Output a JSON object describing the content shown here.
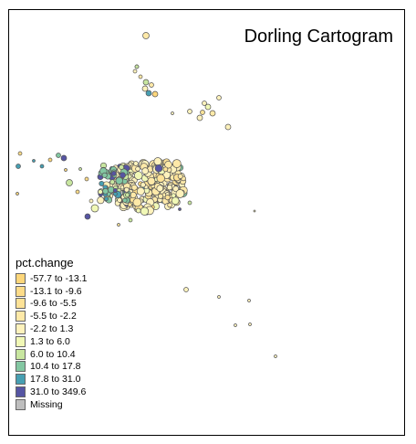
{
  "title": "Dorling Cartogram",
  "legend": {
    "title": "pct.change",
    "items": [
      {
        "label": "-57.7 to -13.1",
        "color": "#FDD67A"
      },
      {
        "label": "-13.1 to -9.6",
        "color": "#FDDC89"
      },
      {
        "label": "-9.6 to -5.5",
        "color": "#FDE297"
      },
      {
        "label": "-5.5 to -2.2",
        "color": "#FEE9A8"
      },
      {
        "label": "-2.2 to 1.3",
        "color": "#FEF2BC"
      },
      {
        "label": "1.3 to 6.0",
        "color": "#F1F8B6"
      },
      {
        "label": "6.0 to 10.4",
        "color": "#C8E6A0"
      },
      {
        "label": "10.4 to 17.8",
        "color": "#83C7A2"
      },
      {
        "label": "17.8 to 31.0",
        "color": "#479FB2"
      },
      {
        "label": "31.0 to 349.6",
        "color": "#5655A3"
      },
      {
        "label": "Missing",
        "color": "#BEBEBE"
      }
    ]
  }
}
